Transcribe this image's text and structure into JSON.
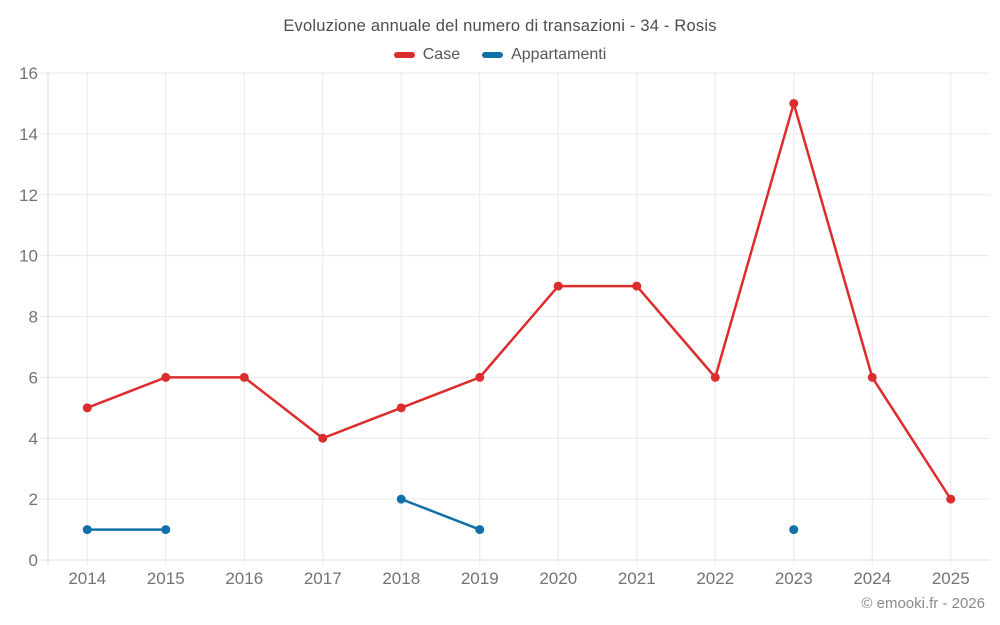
{
  "footer": "© emooki.fr - 2026",
  "chart_data": {
    "type": "line",
    "title": "Evoluzione annuale del numero di transazioni - 34 - Rosis",
    "categories": [
      "2014",
      "2015",
      "2016",
      "2017",
      "2018",
      "2019",
      "2020",
      "2021",
      "2022",
      "2023",
      "2024",
      "2025"
    ],
    "series": [
      {
        "name": "Case",
        "color": "#dd2c2c",
        "values": [
          5,
          6,
          6,
          4,
          5,
          6,
          9,
          9,
          6,
          15,
          6,
          2
        ]
      },
      {
        "name": "Appartamenti",
        "color": "#1270a8",
        "values": [
          1,
          1,
          null,
          null,
          2,
          1,
          null,
          null,
          null,
          1,
          null,
          null
        ]
      }
    ],
    "xlabel": "",
    "ylabel": "",
    "ylim": [
      0,
      16
    ],
    "yticks": [
      0,
      2,
      4,
      6,
      8,
      10,
      12,
      14,
      16
    ],
    "grid": true,
    "legend_position": "top",
    "colors": {
      "grid": "#e9e9e9",
      "axis": "#dcdcdc",
      "tick_label": "#737373"
    }
  }
}
